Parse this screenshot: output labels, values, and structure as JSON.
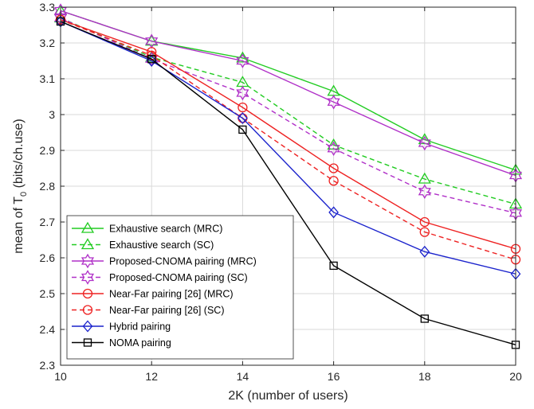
{
  "chart_data": {
    "type": "line",
    "xlabel": "2K (number of users)",
    "ylabel_prefix": "mean of T",
    "ylabel_sub": "0",
    "ylabel_suffix": " (bits/ch.use)",
    "x": [
      10,
      12,
      14,
      16,
      18,
      20
    ],
    "xlim": [
      10,
      20
    ],
    "ylim": [
      2.3,
      3.3
    ],
    "xticks": [
      "10",
      "12",
      "14",
      "16",
      "18",
      "20"
    ],
    "yticks": [
      "2.3",
      "2.4",
      "2.5",
      "2.6",
      "2.7",
      "2.8",
      "2.9",
      "3",
      "3.1",
      "3.2",
      "3.3"
    ],
    "grid": true,
    "legend_position": "bottom-left",
    "series": [
      {
        "name": "Exhaustive search (MRC)",
        "color": "#22cc22",
        "dash": false,
        "marker": "triangle",
        "values": [
          3.29,
          3.205,
          3.158,
          3.065,
          2.93,
          2.845
        ]
      },
      {
        "name": "Exhaustive search (SC)",
        "color": "#22cc22",
        "dash": true,
        "marker": "triangle",
        "values": [
          3.27,
          3.16,
          3.09,
          2.915,
          2.82,
          2.75
        ]
      },
      {
        "name": "Proposed-CNOMA pairing (MRC)",
        "color": "#b030c8",
        "dash": false,
        "marker": "hexagram",
        "values": [
          3.29,
          3.205,
          3.15,
          3.035,
          2.92,
          2.83
        ]
      },
      {
        "name": "Proposed-CNOMA pairing (SC)",
        "color": "#b030c8",
        "dash": true,
        "marker": "hexagram",
        "values": [
          3.27,
          3.155,
          3.06,
          2.905,
          2.785,
          2.725
        ]
      },
      {
        "name": "Near-Far pairing [26] (MRC)",
        "color": "#ee2222",
        "dash": false,
        "marker": "circle",
        "values": [
          3.265,
          3.175,
          3.02,
          2.85,
          2.7,
          2.625
        ]
      },
      {
        "name": "Near-Far pairing [26] (SC)",
        "color": "#ee2222",
        "dash": true,
        "marker": "circle",
        "values": [
          3.265,
          3.165,
          2.99,
          2.815,
          2.672,
          2.595
        ]
      },
      {
        "name": "Hybrid pairing",
        "color": "#1a22cc",
        "dash": false,
        "marker": "diamond",
        "values": [
          3.26,
          3.15,
          2.99,
          2.727,
          2.617,
          2.555
        ]
      },
      {
        "name": "NOMA pairing",
        "color": "#000000",
        "dash": false,
        "marker": "square",
        "values": [
          3.26,
          3.155,
          2.958,
          2.578,
          2.43,
          2.357
        ]
      }
    ]
  }
}
